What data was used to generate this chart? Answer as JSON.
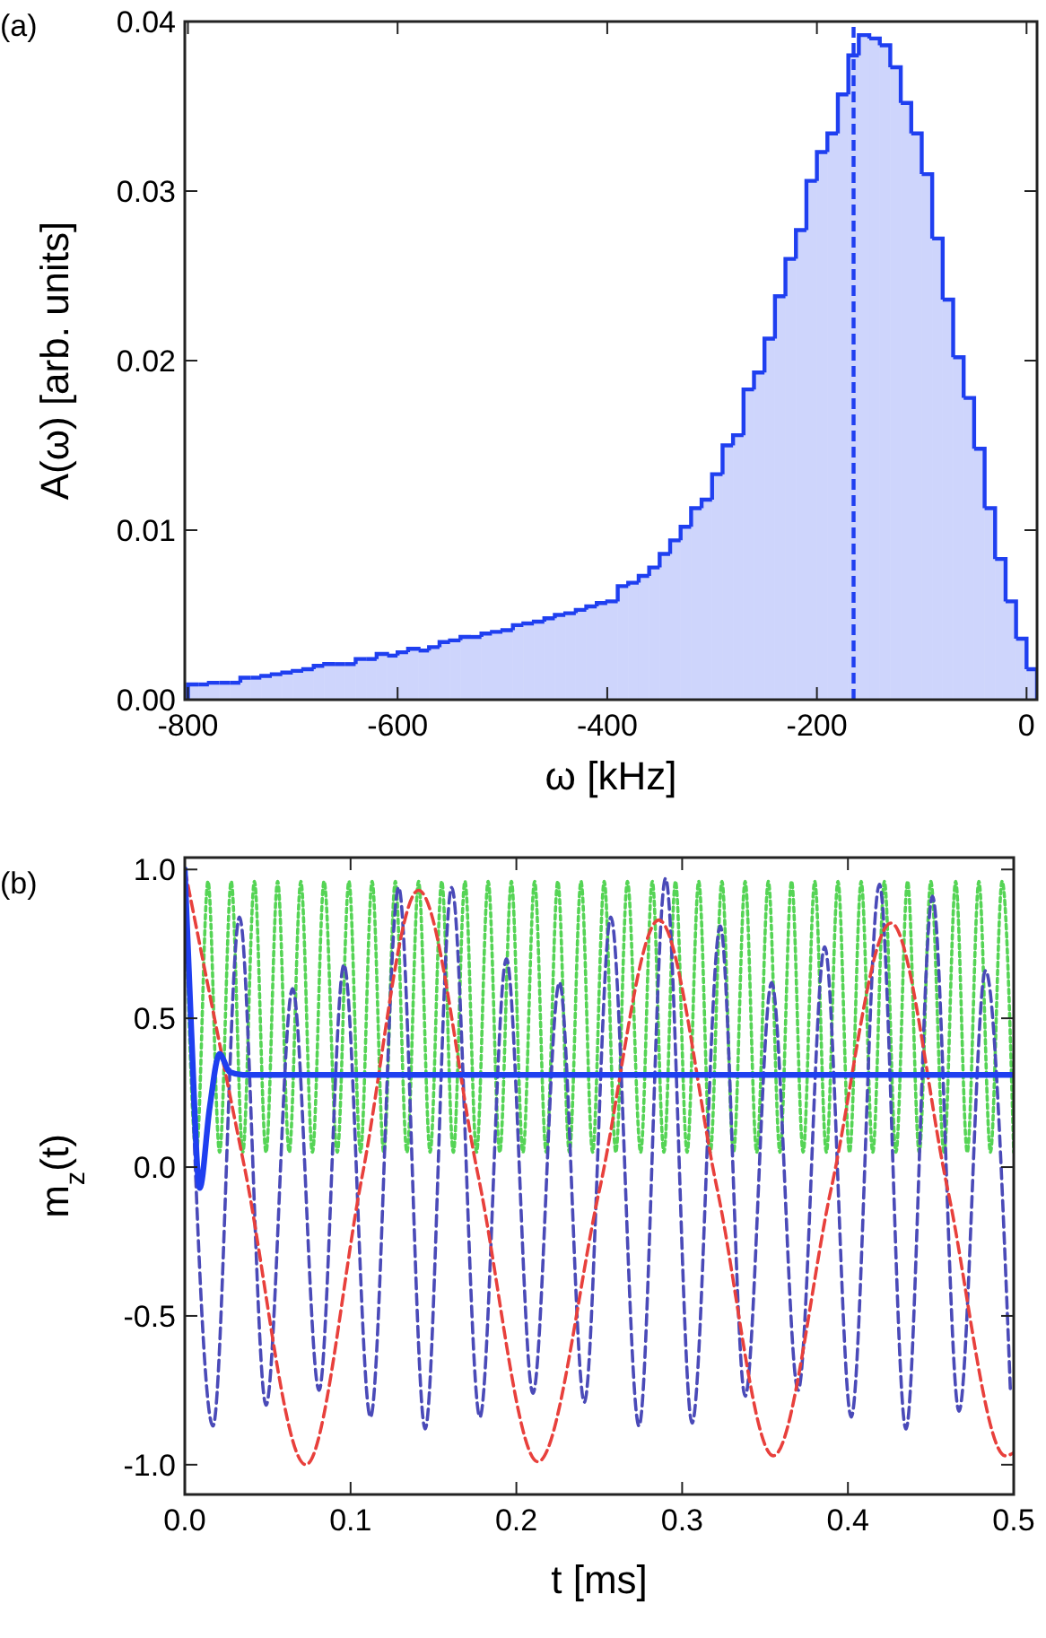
{
  "chart_data": [
    {
      "type": "histogram",
      "title": "(a)",
      "xlabel": "ω [kHz]",
      "ylabel": "A(ω) [arb. units]",
      "color": "#1f3ff0",
      "bins": [
        -800,
        -790,
        -780,
        -770,
        -760,
        -750,
        -740,
        -730,
        -720,
        -710,
        -700,
        -690,
        -680,
        -670,
        -660,
        -650,
        -640,
        -630,
        -620,
        -610,
        -600,
        -590,
        -580,
        -570,
        -560,
        -550,
        -540,
        -530,
        -520,
        -510,
        -500,
        -490,
        -480,
        -470,
        -460,
        -450,
        -440,
        -430,
        -420,
        -410,
        -400,
        -390,
        -380,
        -370,
        -360,
        -350,
        -340,
        -330,
        -320,
        -310,
        -300,
        -290,
        -280,
        -270,
        -260,
        -250,
        -240,
        -230,
        -220,
        -210,
        -200,
        -190,
        -180,
        -170,
        -160,
        -150,
        -140,
        -130,
        -120,
        -110,
        -100,
        -90,
        -80,
        -70,
        -60,
        -50,
        -40,
        -30,
        -20,
        -10,
        0,
        10
      ],
      "values": [
        0.0009,
        0.0009,
        0.001,
        0.001,
        0.001,
        0.0013,
        0.0013,
        0.0014,
        0.0015,
        0.0016,
        0.0017,
        0.0018,
        0.002,
        0.0021,
        0.0021,
        0.0021,
        0.0024,
        0.0024,
        0.0027,
        0.0026,
        0.0028,
        0.003,
        0.0029,
        0.0031,
        0.0034,
        0.0035,
        0.0037,
        0.0037,
        0.0039,
        0.004,
        0.0041,
        0.0044,
        0.0045,
        0.0046,
        0.0048,
        0.005,
        0.0051,
        0.0053,
        0.0055,
        0.0057,
        0.0058,
        0.0067,
        0.0069,
        0.0073,
        0.0078,
        0.0086,
        0.0094,
        0.0102,
        0.0113,
        0.0118,
        0.0133,
        0.015,
        0.0156,
        0.0183,
        0.0193,
        0.0213,
        0.0238,
        0.026,
        0.0277,
        0.0306,
        0.0323,
        0.0334,
        0.0357,
        0.038,
        0.0392,
        0.039,
        0.0386,
        0.0373,
        0.0352,
        0.0334,
        0.031,
        0.0272,
        0.0236,
        0.0202,
        0.0178,
        0.0148,
        0.0113,
        0.0083,
        0.0058,
        0.0036,
        0.0018
      ],
      "xlim": [
        -803,
        10
      ],
      "xticks": [
        -800,
        -600,
        -400,
        -200,
        0
      ],
      "ylim": [
        0,
        0.04
      ],
      "yticks": [
        {
          "value": 0,
          "label": "0.00"
        },
        {
          "value": 0.01,
          "label": "0.01"
        },
        {
          "value": 0.02,
          "label": "0.02"
        },
        {
          "value": 0.03,
          "label": "0.03"
        },
        {
          "value": 0.04,
          "label": "0.04"
        }
      ],
      "ref_lines": [
        {
          "axis": "x",
          "value": -165,
          "color": "#1f3ff0",
          "line_style": "dashed"
        }
      ],
      "grid": false
    },
    {
      "type": "line",
      "title": "(b)",
      "xlabel": "t [ms]",
      "ylabel": "m$_{z}$(t)",
      "marker": "none",
      "xlim": [
        0,
        0.5
      ],
      "xticks": [
        {
          "value": 0,
          "label": "0.0"
        },
        0.1,
        0.2,
        0.3,
        0.4,
        0.5
      ],
      "ylim": [
        -1.1,
        1.04
      ],
      "yticks": [
        {
          "value": -1,
          "label": "-1.0"
        },
        -0.5,
        {
          "value": 0,
          "label": "0.0"
        },
        0.5,
        {
          "value": 1,
          "label": "1.0"
        }
      ],
      "grid": false,
      "series": [
        {
          "color": "#55d455",
          "line_style": "dotted",
          "x": [
            0,
            0.007,
            0.014,
            0.021,
            0.028,
            0.035,
            0.042,
            0.049,
            0.056,
            0.063,
            0.07,
            0.077,
            0.084,
            0.092,
            0.099,
            0.106,
            0.113,
            0.12,
            0.127,
            0.134,
            0.141,
            0.148,
            0.155,
            0.162,
            0.169,
            0.176,
            0.183,
            0.19,
            0.197,
            0.204,
            0.211,
            0.218,
            0.225,
            0.232,
            0.239,
            0.246,
            0.253,
            0.26,
            0.267,
            0.275,
            0.282,
            0.289,
            0.296,
            0.303,
            0.31,
            0.317,
            0.324,
            0.331,
            0.338,
            0.345,
            0.352,
            0.359,
            0.366,
            0.373,
            0.38,
            0.387,
            0.394,
            0.401,
            0.408,
            0.415,
            0.422,
            0.429,
            0.436,
            0.443,
            0.45,
            0.458,
            0.465,
            0.472,
            0.479,
            0.486,
            0.493,
            0.5
          ],
          "values": [
            1.0,
            0.05,
            0.96,
            0.05,
            0.96,
            0.05,
            0.96,
            0.05,
            0.96,
            0.05,
            0.96,
            0.05,
            0.96,
            0.05,
            0.96,
            0.05,
            0.96,
            0.05,
            0.96,
            0.05,
            0.96,
            0.05,
            0.96,
            0.05,
            0.96,
            0.05,
            0.96,
            0.05,
            0.96,
            0.05,
            0.96,
            0.05,
            0.96,
            0.05,
            0.96,
            0.05,
            0.96,
            0.05,
            0.96,
            0.05,
            0.96,
            0.05,
            0.96,
            0.05,
            0.96,
            0.05,
            0.96,
            0.05,
            0.96,
            0.05,
            0.96,
            0.05,
            0.96,
            0.05,
            0.96,
            0.05,
            0.96,
            0.05,
            0.96,
            0.05,
            0.96,
            0.05,
            0.96,
            0.05,
            0.96,
            0.05,
            0.96,
            0.05,
            0.96,
            0.05,
            0.96,
            0.05
          ]
        },
        {
          "color": "#4a4ab8",
          "line_style": "dashed",
          "x": [
            0,
            0.017,
            0.033,
            0.049,
            0.065,
            0.081,
            0.096,
            0.112,
            0.129,
            0.145,
            0.161,
            0.178,
            0.194,
            0.21,
            0.226,
            0.241,
            0.257,
            0.274,
            0.29,
            0.306,
            0.323,
            0.338,
            0.354,
            0.37,
            0.386,
            0.402,
            0.419,
            0.435,
            0.451,
            0.467,
            0.483,
            0.498
          ],
          "values": [
            1.0,
            -0.87,
            0.84,
            -0.8,
            0.6,
            -0.75,
            0.68,
            -0.84,
            0.94,
            -0.88,
            0.94,
            -0.84,
            0.7,
            -0.76,
            0.62,
            -0.79,
            0.84,
            -0.87,
            0.97,
            -0.86,
            0.81,
            -0.77,
            0.62,
            -0.75,
            0.74,
            -0.84,
            0.95,
            -0.88,
            0.91,
            -0.82,
            0.66,
            -0.75
          ]
        },
        {
          "color": "#e8403c",
          "line_style": "dashed",
          "x": [
            0,
            0.036,
            0.073,
            0.107,
            0.141,
            0.177,
            0.213,
            0.25,
            0.286,
            0.321,
            0.355,
            0.39,
            0.426,
            0.46,
            0.495,
            0.5
          ],
          "values": [
            1.0,
            0.0,
            -1.0,
            -0.03,
            0.93,
            -0.03,
            -0.99,
            -0.08,
            0.83,
            -0.07,
            -0.97,
            -0.07,
            0.82,
            -0.07,
            -0.97,
            -0.96
          ]
        },
        {
          "color": "#1f3ff0",
          "line_style": "solid",
          "x": [
            0,
            0.004,
            0.009,
            0.015,
            0.021,
            0.027,
            0.035,
            0.5
          ],
          "values": [
            1.0,
            0.45,
            -0.07,
            0.2,
            0.38,
            0.32,
            0.31,
            0.31
          ]
        }
      ]
    }
  ]
}
